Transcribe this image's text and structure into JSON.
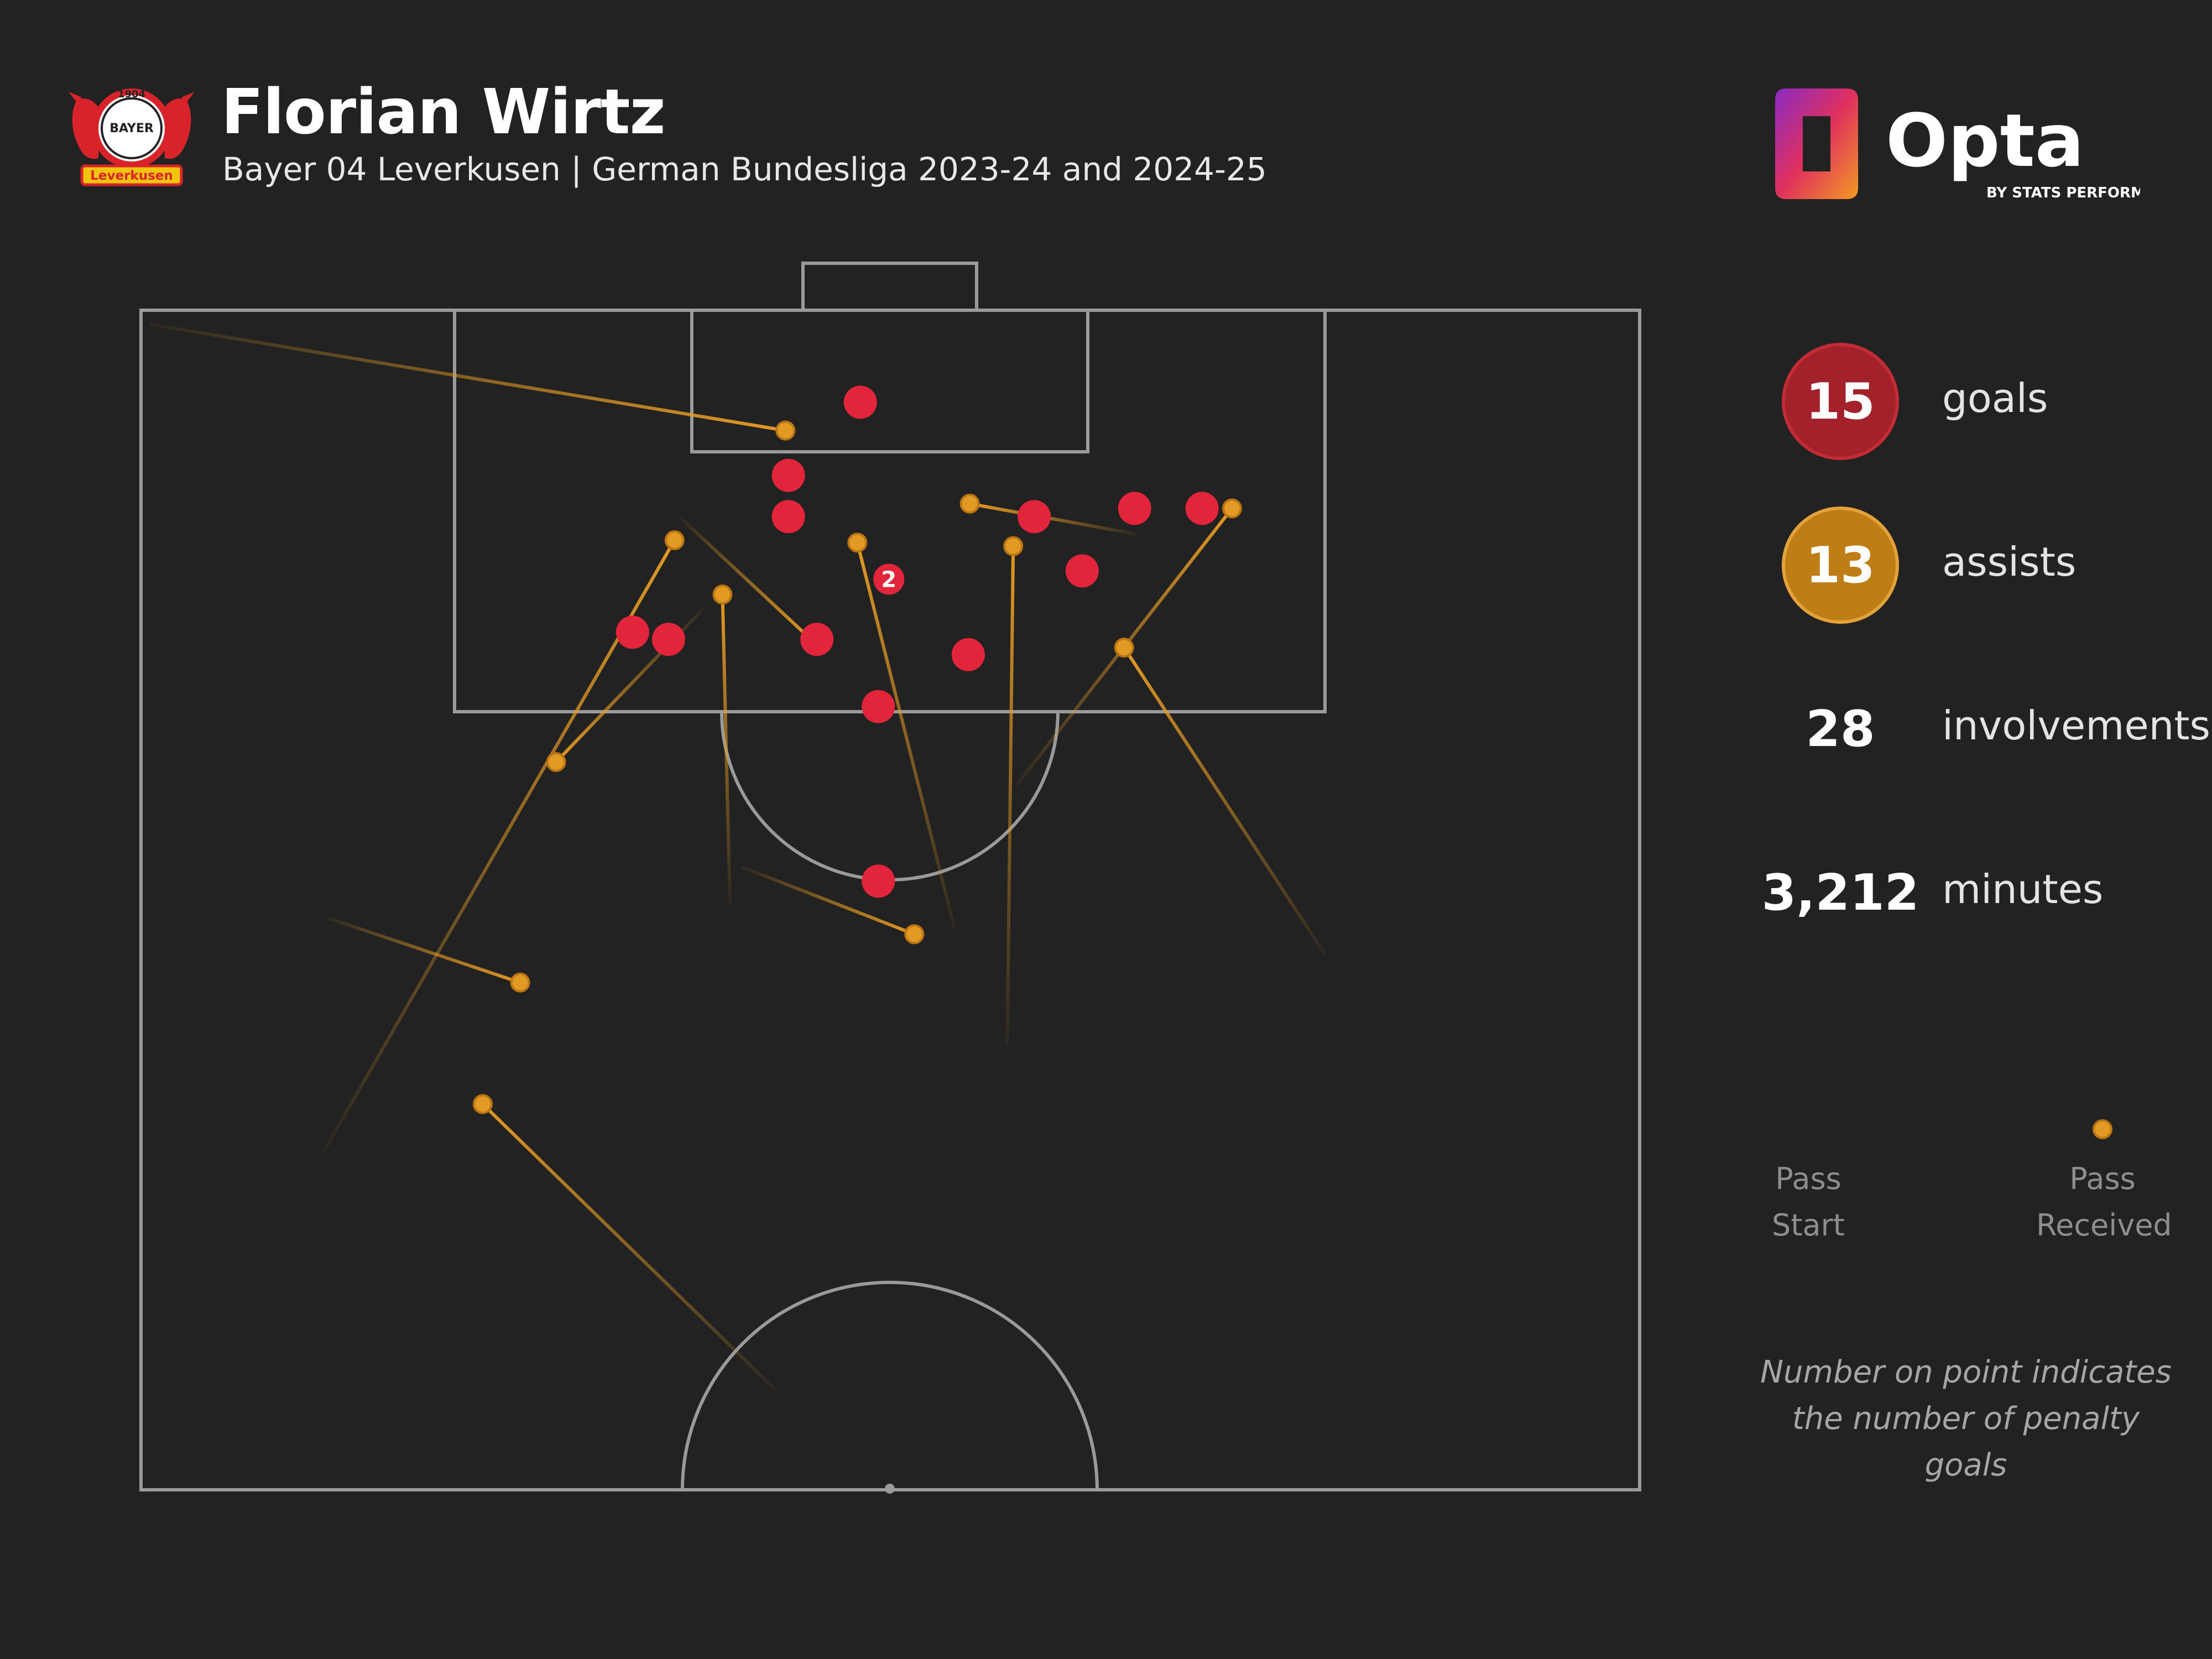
{
  "header": {
    "player_name": "Florian Wirtz",
    "subtitle": "Bayer 04 Leverkusen | German Bundesliga 2023-24 and 2024-25",
    "crest": {
      "top_text": "1904",
      "center_text": "BAYER",
      "bottom_text": "Leverkusen"
    },
    "brand": {
      "name": "Opta",
      "tagline": "BY STATS PERFORM"
    }
  },
  "stats": [
    {
      "value": "15",
      "label": "goals",
      "color": "#a3212b",
      "ring": "#c42c35"
    },
    {
      "value": "13",
      "label": "assists",
      "color": "#bf7d16",
      "ring": "#e3a23a"
    },
    {
      "value": "28",
      "label": "involvements"
    },
    {
      "value": "3,212",
      "label": "minutes"
    }
  ],
  "legend": {
    "start_label_1": "Pass",
    "start_label_2": "Start",
    "end_label_1": "Pass",
    "end_label_2": "Received"
  },
  "footnote": {
    "line1": "Number on point indicates",
    "line2": "the number of penalty goals"
  },
  "colors": {
    "background": "#222222",
    "pitch_lines": "#9a9a9a",
    "goal": "#e2253a",
    "assist": "#e39a24"
  },
  "chart_data": {
    "type": "scatter",
    "description_units": "pitch coordinates: x = 0 (left touchline) to 100 (right touchline), y = distance in from the goal line, 0 at goal line to 100 at halfway line",
    "goals": [
      {
        "x": 48.0,
        "y": 7.8
      },
      {
        "x": 43.2,
        "y": 14.0
      },
      {
        "x": 43.2,
        "y": 17.5
      },
      {
        "x": 59.6,
        "y": 17.5
      },
      {
        "x": 66.3,
        "y": 16.8
      },
      {
        "x": 70.8,
        "y": 16.8
      },
      {
        "x": 62.8,
        "y": 22.1
      },
      {
        "x": 49.9,
        "y": 22.8,
        "penalty_goals": "2"
      },
      {
        "x": 32.8,
        "y": 27.3
      },
      {
        "x": 35.2,
        "y": 27.9
      },
      {
        "x": 45.1,
        "y": 27.9
      },
      {
        "x": 55.2,
        "y": 29.2
      },
      {
        "x": 49.2,
        "y": 33.6
      },
      {
        "x": 49.2,
        "y": 48.4
      }
    ],
    "assists": [
      {
        "start": {
          "x": 0.6,
          "y": 1.2
        },
        "end": {
          "x": 43.0,
          "y": 10.2
        }
      },
      {
        "start": {
          "x": 12.2,
          "y": 71.3
        },
        "end": {
          "x": 35.6,
          "y": 19.5
        }
      },
      {
        "start": {
          "x": 37.6,
          "y": 25.2
        },
        "end": {
          "x": 27.7,
          "y": 38.3
        }
      },
      {
        "start": {
          "x": 36.0,
          "y": 17.6
        },
        "end": {
          "x": 44.7,
          "y": 27.9
        }
      },
      {
        "start": {
          "x": 39.3,
          "y": 50.4
        },
        "end": {
          "x": 38.8,
          "y": 24.1
        }
      },
      {
        "start": {
          "x": 54.3,
          "y": 52.5
        },
        "end": {
          "x": 47.8,
          "y": 19.7
        }
      },
      {
        "start": {
          "x": 57.8,
          "y": 62.3
        },
        "end": {
          "x": 58.2,
          "y": 20.0
        }
      },
      {
        "start": {
          "x": 66.5,
          "y": 19.0
        },
        "end": {
          "x": 55.3,
          "y": 16.4
        }
      },
      {
        "start": {
          "x": 58.4,
          "y": 40.3
        },
        "end": {
          "x": 72.8,
          "y": 16.8
        }
      },
      {
        "start": {
          "x": 79.0,
          "y": 54.6
        },
        "end": {
          "x": 65.6,
          "y": 28.6
        }
      },
      {
        "start": {
          "x": 12.4,
          "y": 51.5
        },
        "end": {
          "x": 25.3,
          "y": 57.0
        }
      },
      {
        "start": {
          "x": 40.1,
          "y": 47.2
        },
        "end": {
          "x": 51.6,
          "y": 52.9
        }
      },
      {
        "start": {
          "x": 42.4,
          "y": 91.6
        },
        "end": {
          "x": 22.8,
          "y": 67.3
        }
      }
    ]
  }
}
